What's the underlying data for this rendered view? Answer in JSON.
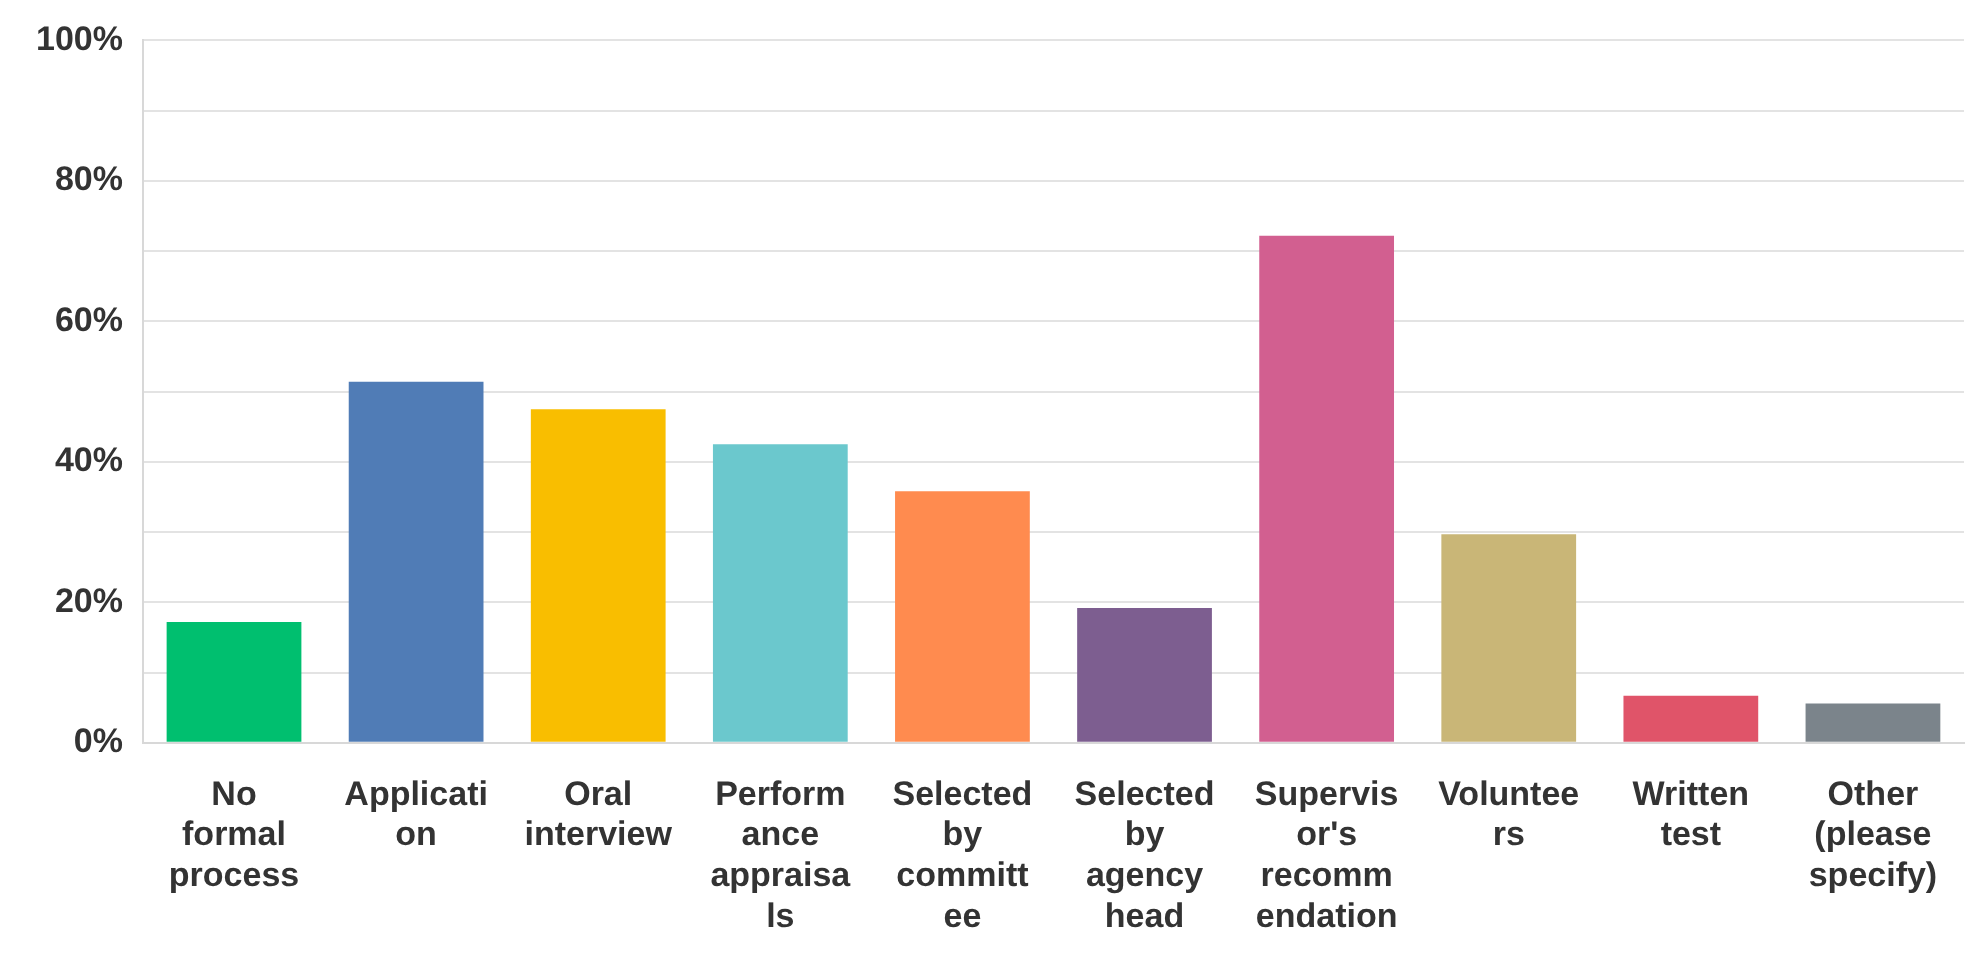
{
  "chart_data": {
    "type": "bar",
    "categories": [
      "No formal process",
      "Application",
      "Oral interview",
      "Performance appraisals",
      "Selected by committee",
      "Selected by agency head",
      "Supervisor's recommendation",
      "Volunteers",
      "Written test",
      "Other (please specify)"
    ],
    "values": [
      17.2,
      51.4,
      47.5,
      42.5,
      35.8,
      19.2,
      72.2,
      29.7,
      6.7,
      5.6
    ],
    "colors": [
      "#00bf6f",
      "#507cb6",
      "#f9be00",
      "#6bc8cd",
      "#ff8b4f",
      "#7d5e90",
      "#d25f90",
      "#c9b677",
      "#e05469",
      "#7b848b"
    ],
    "ylim": [
      0,
      100
    ],
    "yticks": [
      {
        "value": 0,
        "label": "0%"
      },
      {
        "value": 10,
        "label": null
      },
      {
        "value": 20,
        "label": "20%"
      },
      {
        "value": 30,
        "label": null
      },
      {
        "value": 40,
        "label": "40%"
      },
      {
        "value": 50,
        "label": null
      },
      {
        "value": 60,
        "label": "60%"
      },
      {
        "value": 70,
        "label": null
      },
      {
        "value": 80,
        "label": "80%"
      },
      {
        "value": 90,
        "label": null
      },
      {
        "value": 100,
        "label": "100%"
      }
    ],
    "grid": "y",
    "legend": false
  }
}
